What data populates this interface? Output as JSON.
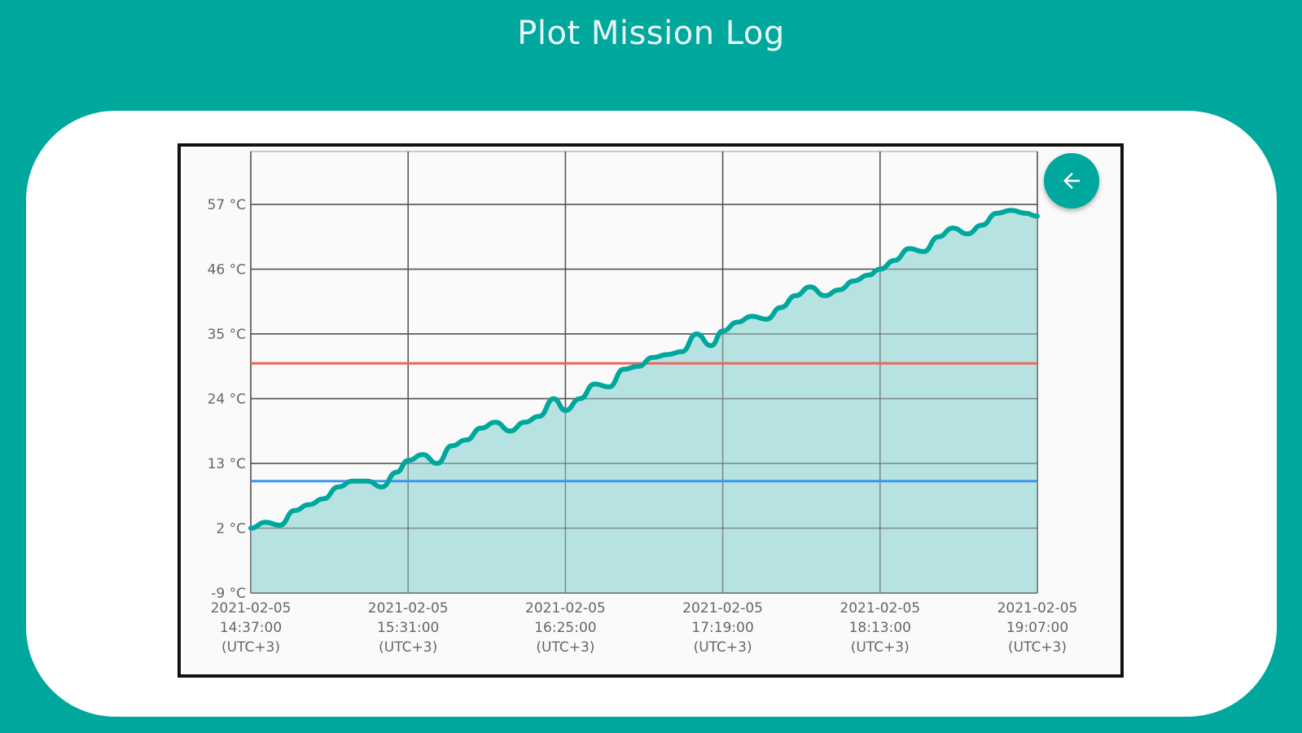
{
  "header": {
    "title": "Plot Mission Log"
  },
  "back_button": {
    "icon": "arrow-left-icon"
  },
  "colors": {
    "background": "#00a79d",
    "line": "#00a79d",
    "fill": "#b2e2df",
    "upper_threshold": "#f2645a",
    "lower_threshold": "#3d95f0"
  },
  "chart_data": {
    "type": "area",
    "y_ticks": [
      "-9 °C",
      "2 °C",
      "13 °C",
      "24 °C",
      "35 °C",
      "46 °C",
      "57 °C"
    ],
    "y_tick_values": [
      -9,
      2,
      13,
      24,
      35,
      46,
      57
    ],
    "ylim": [
      -9,
      66
    ],
    "x_ticks": [
      [
        "2021-02-05",
        "14:37:00",
        "(UTC+3)"
      ],
      [
        "2021-02-05",
        "15:31:00",
        "(UTC+3)"
      ],
      [
        "2021-02-05",
        "16:25:00",
        "(UTC+3)"
      ],
      [
        "2021-02-05",
        "17:19:00",
        "(UTC+3)"
      ],
      [
        "2021-02-05",
        "18:13:00",
        "(UTC+3)"
      ],
      [
        "2021-02-05",
        "19:07:00",
        "(UTC+3)"
      ]
    ],
    "xlim": [
      "2021-02-05 14:37:00",
      "2021-02-05 19:07:00"
    ],
    "grid": true,
    "thresholds": [
      {
        "y": 30,
        "color": "#f2645a"
      },
      {
        "y": 10,
        "color": "#3d95f0"
      }
    ],
    "series": [
      {
        "x": [
          "14:37",
          "14:42",
          "14:47",
          "14:52",
          "14:57",
          "15:02",
          "15:07",
          "15:12",
          "15:17",
          "15:22",
          "15:27",
          "15:31",
          "15:36",
          "15:41",
          "15:46",
          "15:51",
          "15:56",
          "16:01",
          "16:06",
          "16:11",
          "16:16",
          "16:21",
          "16:25",
          "16:30",
          "16:35",
          "16:40",
          "16:45",
          "16:50",
          "16:55",
          "17:00",
          "17:05",
          "17:10",
          "17:15",
          "17:19",
          "17:24",
          "17:29",
          "17:34",
          "17:39",
          "17:44",
          "17:49",
          "17:54",
          "17:59",
          "18:04",
          "18:09",
          "18:13",
          "18:18",
          "18:23",
          "18:28",
          "18:33",
          "18:38",
          "18:43",
          "18:48",
          "18:53",
          "18:58",
          "19:03",
          "19:07"
        ],
        "y": [
          2,
          3,
          2.5,
          5,
          6,
          7,
          9,
          10,
          10,
          9,
          11.5,
          13.5,
          14.5,
          13,
          16,
          17,
          19,
          20,
          18.5,
          20,
          21,
          24,
          22,
          24,
          26.5,
          26,
          29,
          29.5,
          31,
          31.5,
          32,
          35,
          33,
          35.5,
          37,
          38,
          37.5,
          39.5,
          41.5,
          43,
          41.5,
          42.5,
          44,
          45,
          46,
          47.5,
          49.5,
          49,
          51.5,
          53,
          52,
          53.5,
          55.5,
          56,
          55.5,
          55
        ]
      }
    ]
  }
}
